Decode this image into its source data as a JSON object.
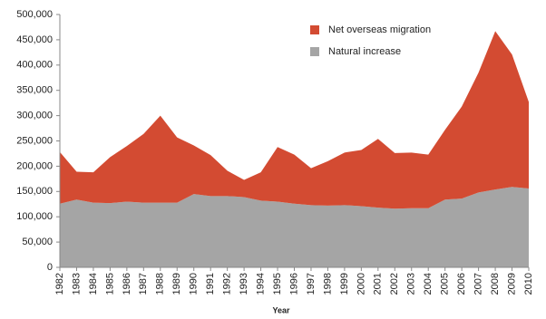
{
  "chart_data": {
    "type": "stacked-area",
    "x_label": "Year",
    "categories": [
      "1982",
      "1983",
      "1984",
      "1985",
      "1986",
      "1987",
      "1988",
      "1989",
      "1990",
      "1991",
      "1992",
      "1993",
      "1994",
      "1995",
      "1996",
      "1997",
      "1998",
      "1999",
      "2000",
      "2001",
      "2002",
      "2003",
      "2004",
      "2005",
      "2006",
      "2007",
      "2008",
      "2009",
      "2010"
    ],
    "series": [
      {
        "name": "Natural increase",
        "color": "#a5a5a5",
        "values": [
          126000,
          134000,
          128000,
          127000,
          130000,
          128000,
          128000,
          128000,
          145000,
          141000,
          141000,
          139000,
          132000,
          130000,
          126000,
          123000,
          122000,
          123000,
          121000,
          118000,
          116000,
          117000,
          117000,
          134000,
          136000,
          148000,
          154000,
          159000,
          156000
        ]
      },
      {
        "name": "Net overseas migration",
        "color": "#d34b32",
        "values": [
          102000,
          55000,
          60000,
          91000,
          110000,
          136000,
          172000,
          129000,
          96000,
          81000,
          50000,
          34000,
          56000,
          108000,
          97000,
          73000,
          88000,
          104000,
          111000,
          136000,
          110000,
          110000,
          106000,
          138000,
          182000,
          237000,
          313000,
          262000,
          171000
        ]
      }
    ],
    "ylim": [
      0,
      500000
    ],
    "yticks": [
      0,
      {
        "value": 50000,
        "label": "50,000"
      },
      {
        "value": 100000,
        "label": "100,000"
      },
      {
        "value": 150000,
        "label": "150,000"
      },
      {
        "value": 200000,
        "label": "200,000"
      },
      {
        "value": 250000,
        "label": "250,000"
      },
      {
        "value": 300000,
        "label": "300,000"
      },
      {
        "value": 350000,
        "label": "350,000"
      },
      {
        "value": 400000,
        "label": "400,000"
      },
      {
        "value": 450000,
        "label": "450,000"
      },
      {
        "value": 500000,
        "label": "500,000"
      }
    ],
    "grid": false,
    "legend": "top-right"
  }
}
